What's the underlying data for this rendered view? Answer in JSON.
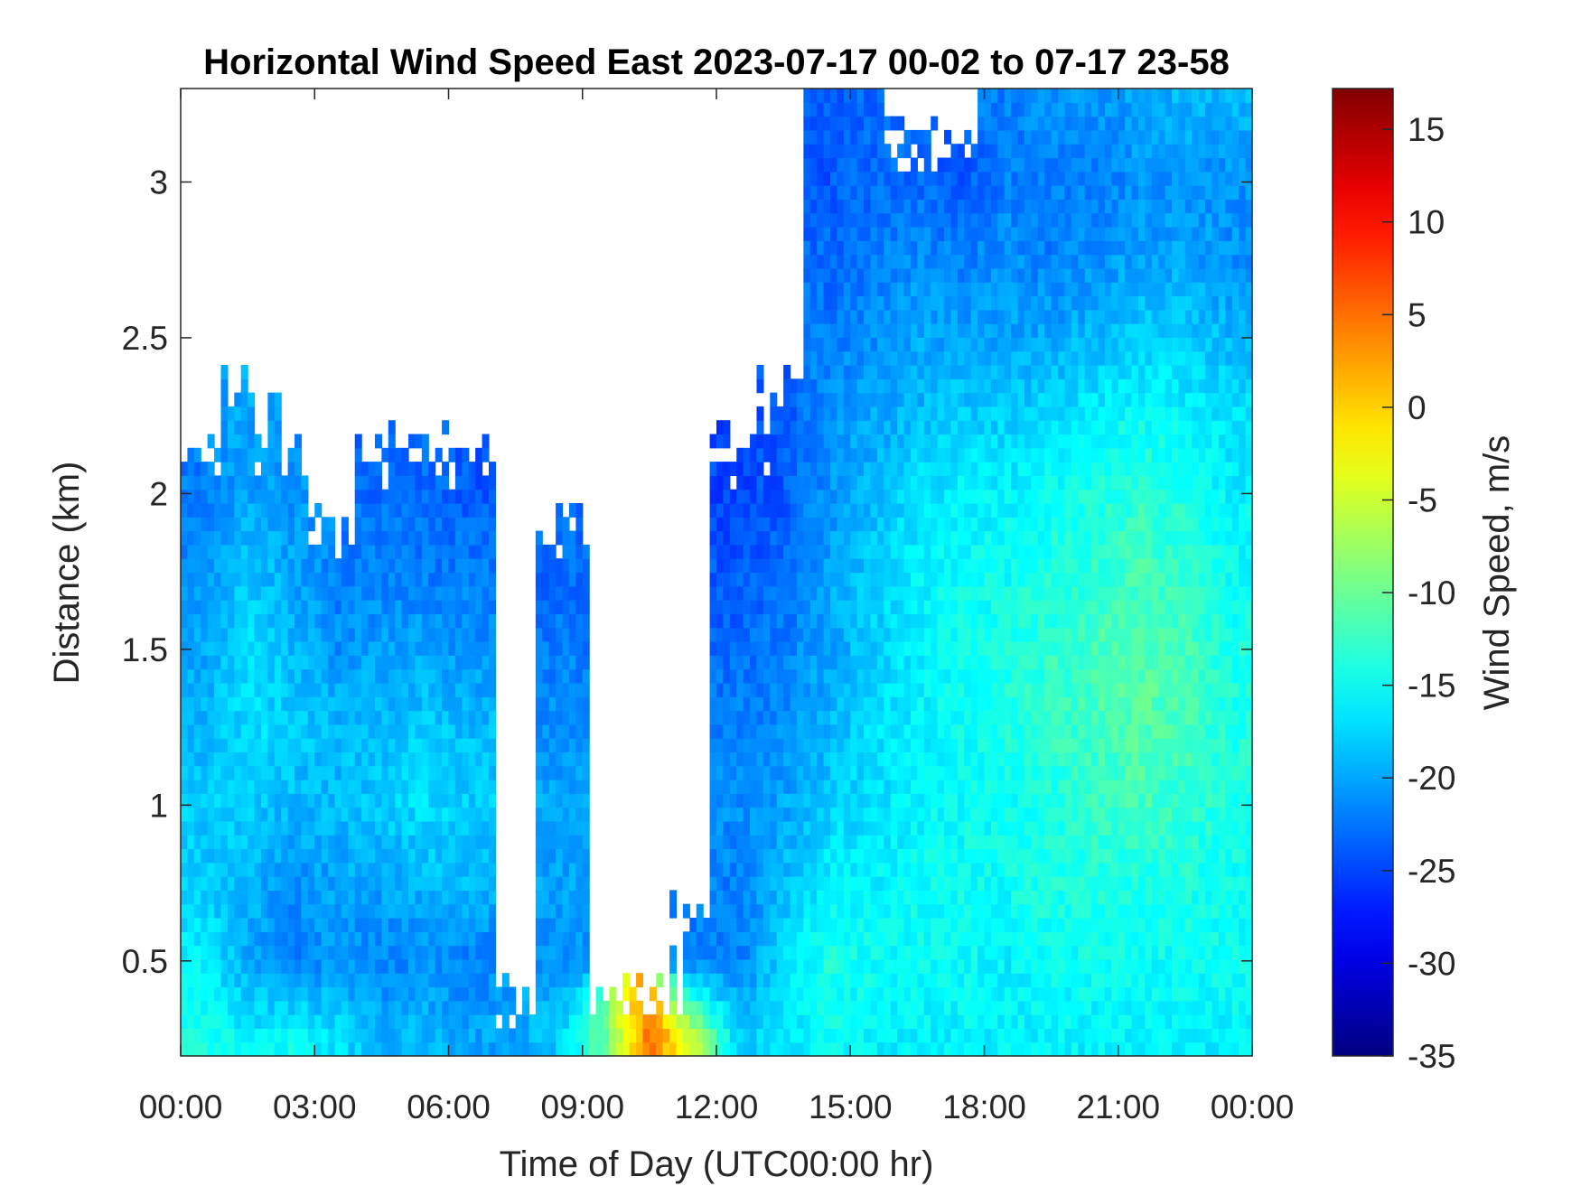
{
  "chart_data": {
    "type": "heatmap",
    "title": "Horizontal Wind Speed East 2023-07-17 00-02 to 07-17 23-58",
    "xlabel": "Time of Day (UTC00:00 hr)",
    "ylabel": "Distance (km)",
    "colorbar_label": "Wind Speed, m/s",
    "colormap": "jet",
    "xlim": [
      0,
      24
    ],
    "ylim": [
      0.195,
      3.3
    ],
    "clim": [
      -35,
      17.2
    ],
    "x_ticks": [
      0,
      3,
      6,
      9,
      12,
      15,
      18,
      21,
      24
    ],
    "x_tick_labels": [
      "00:00",
      "03:00",
      "06:00",
      "09:00",
      "12:00",
      "15:00",
      "18:00",
      "21:00",
      "00:00"
    ],
    "y_ticks": [
      0.5,
      1,
      1.5,
      2,
      2.5,
      3
    ],
    "y_tick_labels": [
      "0.5",
      "1",
      "1.5",
      "2",
      "2.5",
      "3"
    ],
    "colorbar_ticks": [
      15,
      10,
      5,
      0,
      -5,
      -10,
      -15,
      -20,
      -25,
      -30,
      -35
    ],
    "colorbar_tick_labels": [
      "15",
      "10",
      "5",
      "0",
      "-5",
      "-10",
      "-15",
      "-20",
      "-25",
      "-30",
      "-35"
    ],
    "grid_hours_center": [
      0.5,
      1.5,
      2.5,
      3.5,
      4.5,
      5.5,
      6.5,
      7.5,
      8.5,
      9.5,
      10.5,
      11.5,
      12.5,
      13.5,
      14.5,
      15.5,
      16.5,
      17.5,
      18.5,
      19.5,
      20.5,
      21.5,
      22.5,
      23.5
    ],
    "grid_heights_km": [
      0.25,
      0.5,
      0.75,
      1.0,
      1.25,
      1.5,
      1.75,
      2.0,
      2.25,
      2.5,
      2.75,
      3.0,
      3.25
    ],
    "values_by_hour": [
      [
        -14,
        -16,
        -18,
        -18,
        -19,
        -20,
        -21,
        -22,
        null,
        null,
        null,
        null,
        null
      ],
      [
        -16,
        -20,
        -19,
        -18,
        -17,
        -17,
        -18,
        -20,
        -20,
        null,
        null,
        null,
        null
      ],
      [
        -15,
        -22,
        -21,
        -19,
        -18,
        -19,
        -20,
        -21,
        null,
        null,
        null,
        null,
        null
      ],
      [
        -17,
        -21,
        -20,
        -19,
        -19,
        -21,
        -22,
        null,
        null,
        null,
        null,
        null,
        null
      ],
      [
        -19,
        -22,
        -20,
        -18,
        -19,
        -20,
        -22,
        -23,
        null,
        null,
        null,
        null,
        null
      ],
      [
        -19,
        -21,
        -19,
        -17,
        -18,
        -20,
        -22,
        -23,
        null,
        null,
        null,
        null,
        null
      ],
      [
        -20,
        -22,
        -19,
        -18,
        -19,
        -21,
        -22,
        -24,
        null,
        null,
        null,
        null,
        null
      ],
      [
        -20,
        null,
        null,
        null,
        null,
        null,
        null,
        null,
        null,
        null,
        null,
        null,
        null
      ],
      [
        -18,
        -21,
        -20,
        -20,
        -21,
        -22,
        -23,
        null,
        null,
        null,
        null,
        null,
        null
      ],
      [
        -10,
        null,
        null,
        null,
        null,
        null,
        null,
        null,
        null,
        null,
        null,
        null,
        null
      ],
      [
        5,
        null,
        null,
        null,
        null,
        null,
        null,
        null,
        null,
        null,
        null,
        null,
        null
      ],
      [
        -5,
        -22,
        null,
        null,
        null,
        null,
        null,
        null,
        null,
        null,
        null,
        null,
        null
      ],
      [
        -18,
        -22,
        -22,
        -21,
        -22,
        -23,
        -24,
        -25,
        null,
        null,
        null,
        null,
        null
      ],
      [
        -17,
        -17,
        -19,
        -20,
        -21,
        -22,
        -23,
        -24,
        -24,
        null,
        null,
        null,
        null
      ],
      [
        -15,
        -14,
        -16,
        -18,
        -19,
        -20,
        -20,
        -21,
        -21,
        -22,
        -23,
        -24,
        -24
      ],
      [
        -16,
        -15,
        -16,
        -17,
        -17,
        -18,
        -18,
        -19,
        -20,
        -21,
        -22,
        -23,
        -23
      ],
      [
        -16,
        -15,
        -15,
        -16,
        -16,
        -16,
        -16,
        -17,
        -19,
        -20,
        -21,
        -23,
        null
      ],
      [
        -16,
        -15,
        -15,
        -15,
        -15,
        -15,
        -15,
        -16,
        -18,
        -20,
        -22,
        -24,
        null
      ],
      [
        -16,
        -16,
        -15,
        -15,
        -14,
        -14,
        -15,
        -16,
        -18,
        -20,
        -21,
        -22,
        -22
      ],
      [
        -16,
        -15,
        -14,
        -14,
        -13,
        -13,
        -14,
        -15,
        -17,
        -20,
        -22,
        -22,
        -21
      ],
      [
        -16,
        -15,
        -14,
        -13,
        -12,
        -12,
        -13,
        -14,
        -16,
        -19,
        -21,
        -22,
        -21
      ],
      [
        -16,
        -15,
        -14,
        -12,
        -11,
        -11,
        -12,
        -13,
        -15,
        -18,
        -20,
        -21,
        -20
      ],
      [
        -16,
        -15,
        -14,
        -13,
        -12,
        -12,
        -13,
        -14,
        -16,
        -18,
        -20,
        -21,
        -19
      ],
      [
        -16,
        -15,
        -15,
        -14,
        -14,
        -14,
        -15,
        -16,
        -17,
        -19,
        -21,
        -21,
        -19
      ]
    ]
  }
}
